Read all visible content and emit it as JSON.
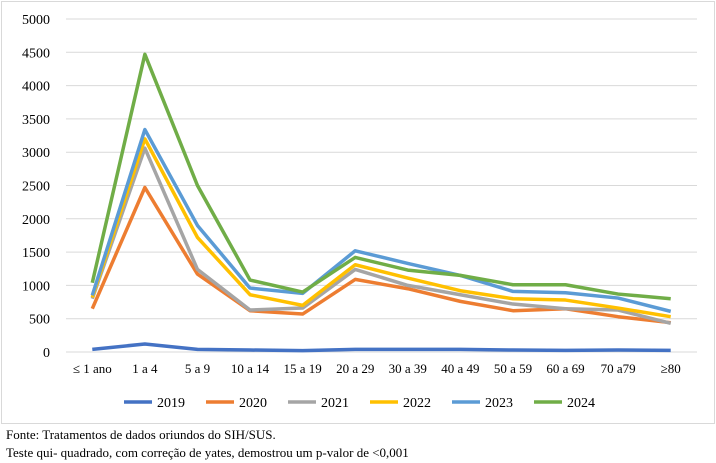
{
  "chart_data": {
    "type": "line",
    "categories": [
      "≤ 1 ano",
      "1 a 4",
      "5 a 9",
      "10 a 14",
      "15 a 19",
      "20 a 29",
      "30 a 39",
      "40 a 49",
      "50 a 59",
      "60 a 69",
      "70 a79",
      "≥80"
    ],
    "ylim": [
      0,
      5000
    ],
    "yticks": [
      0,
      500,
      1000,
      1500,
      2000,
      2500,
      3000,
      3500,
      4000,
      4500,
      5000
    ],
    "grid": true,
    "legend": "bottom",
    "series": [
      {
        "name": "2019",
        "color": "#4472c4",
        "values": [
          40,
          120,
          40,
          30,
          20,
          40,
          40,
          40,
          30,
          25,
          30,
          25
        ]
      },
      {
        "name": "2020",
        "color": "#ed7d31",
        "values": [
          650,
          2470,
          1170,
          620,
          570,
          1090,
          950,
          760,
          620,
          650,
          530,
          440
        ]
      },
      {
        "name": "2021",
        "color": "#a5a5a5",
        "values": [
          800,
          3060,
          1240,
          630,
          660,
          1240,
          1000,
          860,
          720,
          650,
          630,
          430
        ]
      },
      {
        "name": "2022",
        "color": "#ffc000",
        "values": [
          820,
          3200,
          1720,
          860,
          700,
          1310,
          1110,
          920,
          800,
          780,
          660,
          530
        ]
      },
      {
        "name": "2023",
        "color": "#5b9bd5",
        "values": [
          850,
          3340,
          1900,
          960,
          880,
          1520,
          1330,
          1150,
          910,
          890,
          810,
          610
        ]
      },
      {
        "name": "2024",
        "color": "#70ad47",
        "values": [
          1040,
          4470,
          2500,
          1080,
          900,
          1420,
          1230,
          1150,
          1010,
          1010,
          870,
          800
        ]
      }
    ]
  },
  "caption": {
    "line1": "Fonte: Tratamentos de dados oriundos do SIH/SUS.",
    "line2": "Teste qui- quadrado, com correção de yates, demostrou um p-valor de <0,001"
  }
}
